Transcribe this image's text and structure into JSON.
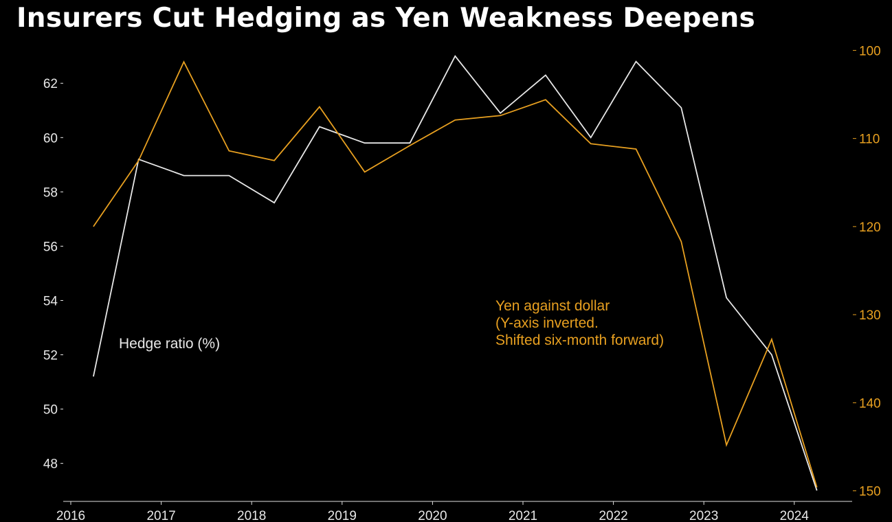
{
  "chart_data": {
    "type": "line",
    "title": "Insurers Cut Hedging as Yen Weakness Deepens",
    "x_ticks": [
      "2016",
      "2017",
      "2018",
      "2019",
      "2020",
      "2021",
      "2022",
      "2023",
      "2024"
    ],
    "xlim": [
      2016.0,
      2024.6
    ],
    "left_axis": {
      "ticks": [
        48,
        50,
        52,
        54,
        56,
        58,
        60,
        62
      ],
      "ylim": [
        46.6,
        63.6
      ],
      "color": "#e8e8e8"
    },
    "right_axis": {
      "ticks": [
        100,
        110,
        120,
        130,
        140,
        150
      ],
      "ylim": [
        151.2,
        98.8
      ],
      "inverted": true,
      "color": "#e8a020"
    },
    "series": [
      {
        "name": "Hedge ratio (%)",
        "axis": "left",
        "color": "#e8e8e8",
        "x": [
          2016.25,
          2016.75,
          2017.25,
          2017.75,
          2018.25,
          2018.75,
          2019.25,
          2019.75,
          2020.25,
          2020.75,
          2021.25,
          2021.75,
          2022.25,
          2022.75,
          2023.25,
          2023.75,
          2024.25
        ],
        "values": [
          51.2,
          59.2,
          58.6,
          58.6,
          57.6,
          60.4,
          59.8,
          59.8,
          63.0,
          60.9,
          62.3,
          60.0,
          62.8,
          61.1,
          54.1,
          52.0,
          47.0
        ]
      },
      {
        "name": "Yen against dollar\n(Y-axis inverted.\nShifted six-month forward)",
        "label_lines": [
          "Yen against dollar",
          "(Y-axis inverted.",
          "Shifted six-month forward)"
        ],
        "axis": "right",
        "color": "#e8a020",
        "x": [
          2016.25,
          2016.75,
          2017.25,
          2017.75,
          2018.25,
          2018.75,
          2019.25,
          2019.75,
          2020.25,
          2020.75,
          2021.25,
          2021.75,
          2022.25,
          2022.75,
          2023.25,
          2023.75,
          2024.25
        ],
        "values": [
          120.0,
          112.5,
          101.3,
          111.4,
          112.5,
          106.4,
          113.8,
          110.8,
          107.9,
          107.4,
          105.6,
          110.6,
          111.2,
          121.7,
          144.8,
          132.8,
          149.6
        ]
      }
    ]
  }
}
